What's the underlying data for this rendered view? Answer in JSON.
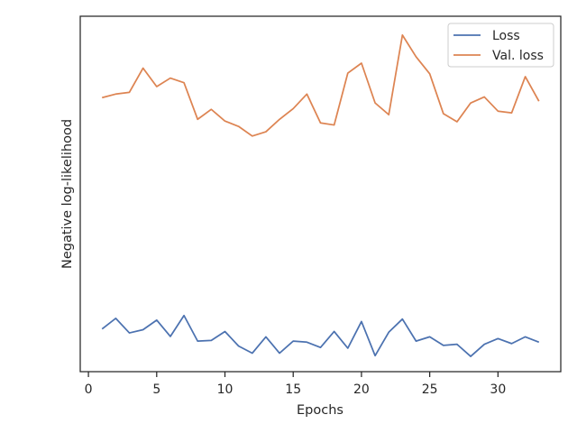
{
  "chart_data": {
    "type": "line",
    "xlabel": "Epochs",
    "ylabel": "Negative log-likelihood",
    "xlim": [
      -0.6,
      34.6
    ],
    "ylim": [
      0,
      100
    ],
    "x_ticks": [
      0,
      5,
      10,
      15,
      20,
      25,
      30
    ],
    "y_ticks_shown": false,
    "grid": false,
    "legend_position": "top-right",
    "x": [
      1,
      2,
      3,
      4,
      5,
      6,
      7,
      8,
      9,
      10,
      11,
      12,
      13,
      14,
      15,
      16,
      17,
      18,
      19,
      20,
      21,
      22,
      23,
      24,
      25,
      26,
      27,
      28,
      29,
      30,
      31,
      32,
      33
    ],
    "series": [
      {
        "name": "Loss",
        "color": "#4c72b0",
        "values": [
          12.0,
          15.0,
          10.9,
          11.8,
          14.5,
          9.9,
          15.8,
          8.6,
          8.8,
          11.3,
          7.2,
          5.2,
          9.8,
          5.2,
          8.6,
          8.3,
          6.8,
          11.3,
          6.6,
          14.1,
          4.5,
          11.1,
          14.8,
          8.6,
          9.8,
          7.4,
          7.7,
          4.3,
          7.7,
          9.3,
          7.9,
          9.8,
          8.3
        ]
      },
      {
        "name": "Val. loss",
        "color": "#dd8452",
        "values": [
          77.1,
          78.1,
          78.6,
          85.4,
          80.2,
          82.6,
          81.3,
          71.0,
          73.8,
          70.5,
          69.0,
          66.3,
          67.5,
          71.0,
          74.0,
          78.1,
          70.0,
          69.4,
          84.0,
          86.8,
          75.6,
          72.3,
          94.7,
          88.6,
          83.8,
          72.6,
          70.3,
          75.6,
          77.3,
          73.3,
          72.8,
          83.0,
          76.1
        ]
      }
    ]
  }
}
